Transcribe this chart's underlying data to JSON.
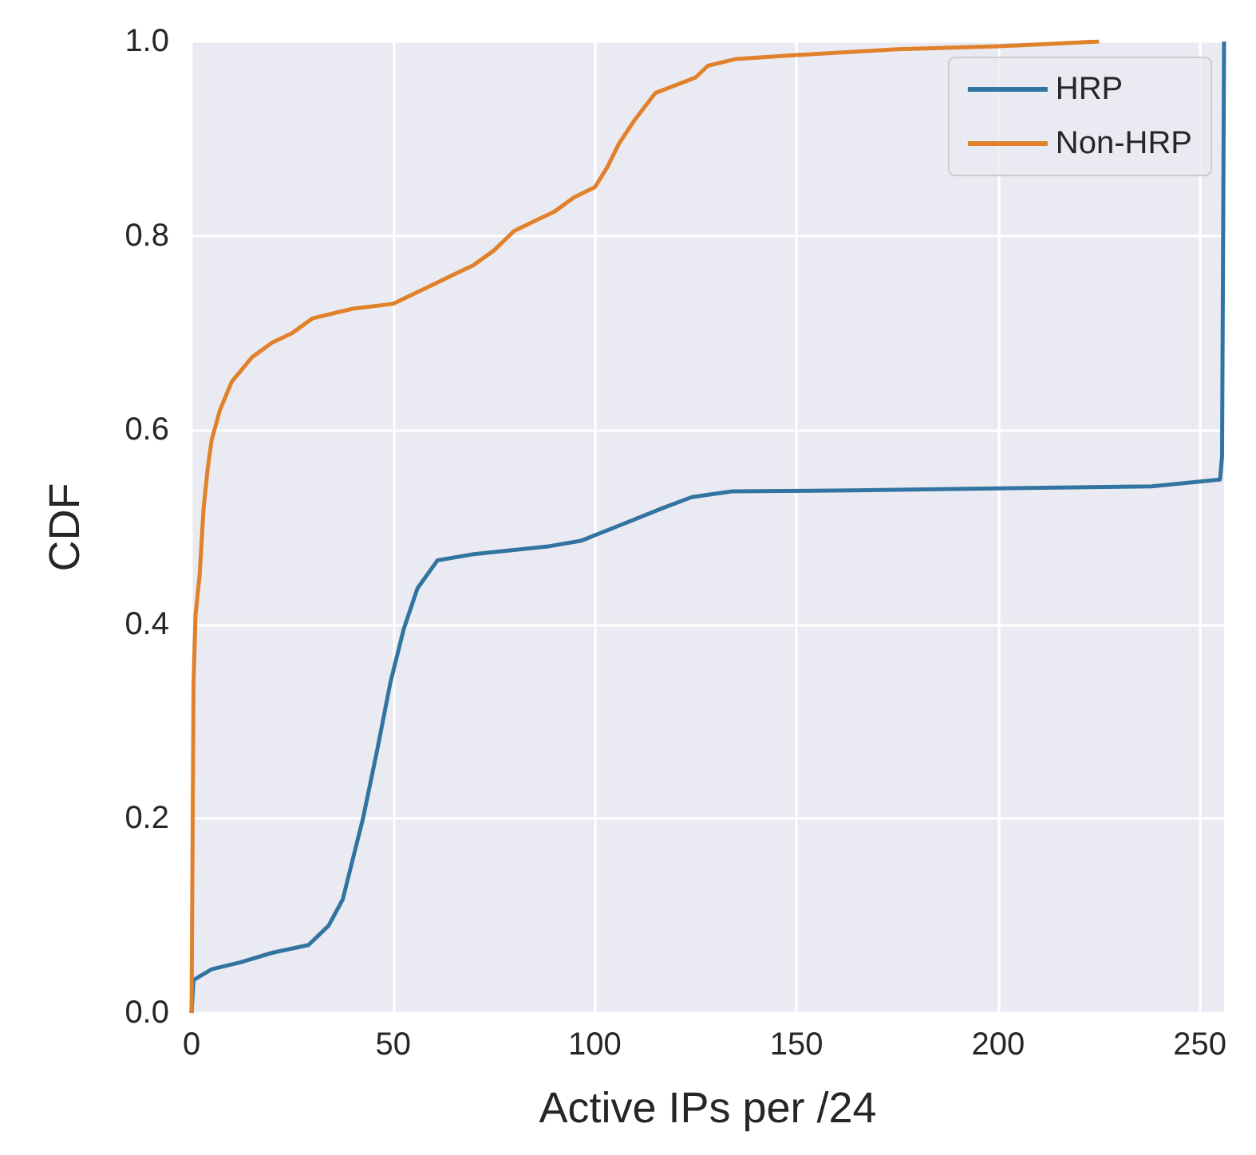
{
  "chart_data": {
    "type": "line",
    "xlabel": "Active IPs per /24",
    "ylabel": "CDF",
    "xlim": [
      0,
      256
    ],
    "xticks": [
      0,
      50,
      100,
      150,
      200,
      250
    ],
    "ylim": [
      0,
      1
    ],
    "yticks": [
      {
        "value": 0,
        "label": "0.0"
      },
      {
        "value": 0.2,
        "label": "0.2"
      },
      {
        "value": 0.4,
        "label": "0.4"
      },
      {
        "value": 0.6,
        "label": "0.6"
      },
      {
        "value": 0.8,
        "label": "0.8"
      },
      {
        "value": 1,
        "label": "1.0"
      }
    ],
    "grid": true,
    "legend": "top right",
    "series": [
      {
        "name": "HRP",
        "color": "#3274a1",
        "x": [
          0,
          0.5,
          5,
          12,
          20,
          29,
          34,
          37.5,
          42.5,
          46,
          49.3,
          52.6,
          56,
          61,
          69.5,
          88,
          96.5,
          105,
          117,
          124,
          134,
          164,
          238,
          255,
          255.5,
          256
        ],
        "values": [
          0,
          0.034,
          0.045,
          0.052,
          0.062,
          0.07,
          0.09,
          0.117,
          0.2,
          0.27,
          0.34,
          0.395,
          0.437,
          0.466,
          0.472,
          0.48,
          0.486,
          0.5,
          0.52,
          0.531,
          0.537,
          0.538,
          0.542,
          0.549,
          0.573,
          1
        ]
      },
      {
        "name": "Non-HRP",
        "color": "#e1812c",
        "x": [
          0,
          0.5,
          1,
          2,
          3,
          4,
          5,
          7,
          10,
          15,
          20,
          25,
          30,
          35,
          40,
          50,
          60,
          65,
          70,
          75,
          80,
          85,
          90,
          95,
          100,
          103,
          106,
          110,
          115,
          120,
          125,
          128,
          135,
          150,
          175,
          200,
          225
        ],
        "values": [
          0,
          0.34,
          0.41,
          0.45,
          0.52,
          0.56,
          0.59,
          0.62,
          0.65,
          0.675,
          0.69,
          0.7,
          0.715,
          0.72,
          0.725,
          0.73,
          0.75,
          0.76,
          0.77,
          0.785,
          0.805,
          0.815,
          0.825,
          0.84,
          0.85,
          0.87,
          0.895,
          0.92,
          0.947,
          0.955,
          0.963,
          0.975,
          0.982,
          0.986,
          0.992,
          0.995,
          1
        ]
      }
    ]
  }
}
